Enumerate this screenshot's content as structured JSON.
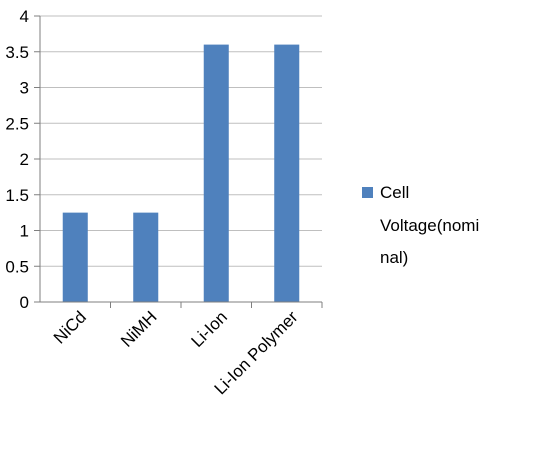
{
  "chart_data": {
    "type": "bar",
    "categories": [
      "NiCd",
      "NiMH",
      "Li-Ion",
      "Li-Ion Polymer"
    ],
    "series": [
      {
        "name": "Cell Voltage(nominal)",
        "values": [
          1.25,
          1.25,
          3.6,
          3.6
        ],
        "color": "#4F81BD"
      }
    ],
    "ylim": [
      0,
      4
    ],
    "yticks": [
      0,
      0.5,
      1,
      1.5,
      2,
      2.5,
      3,
      3.5,
      4
    ],
    "ytick_labels": [
      "0",
      "0.5",
      "1",
      "1.5",
      "2",
      "2.5",
      "3",
      "3.5",
      "4"
    ],
    "grid": true,
    "grid_color": "#BFBFBF",
    "axis_color": "#7F7F7F",
    "legend_position": "right",
    "legend_lines": [
      "Cell",
      "Voltage(nomi",
      "nal)"
    ]
  }
}
